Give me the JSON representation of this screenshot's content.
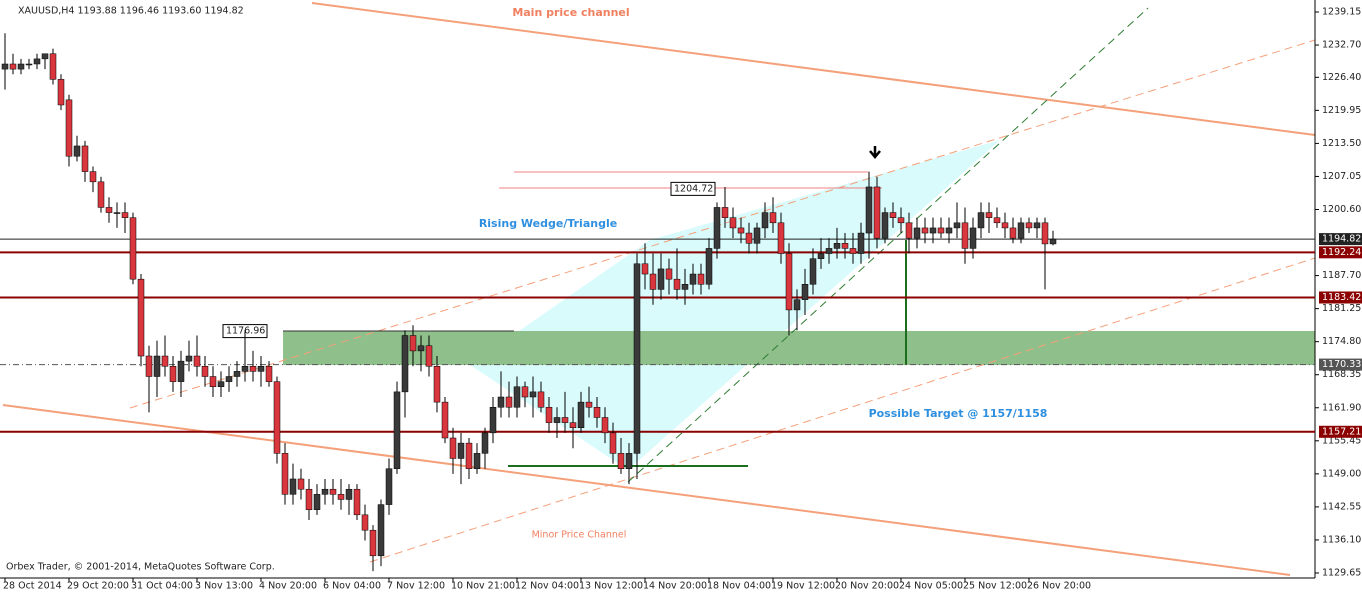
{
  "chart_data": {
    "type": "candlestick",
    "title": "XAUUSD,H4  1193.88 1196.46 1193.60 1194.82",
    "footer": "Orbex Trader, © 2001-2014, MetaQuotes Software Corp.",
    "annotations": [
      "Main price channel",
      "Rising Wedge/Triangle",
      "Possible Target @ 1157/1158",
      "Minor Price Channel"
    ],
    "price_labels": [
      1176.96,
      1204.72
    ],
    "up_color": "#3a3a3a",
    "down_color": "#d9363e",
    "ylim": [
      1128.67,
      1241.1
    ],
    "yticks": [
      {
        "value": 1239.15,
        "label": "1239.15"
      },
      {
        "value": 1232.7,
        "label": "1232.70"
      },
      {
        "value": 1226.4,
        "label": "1226.40"
      },
      {
        "value": 1219.95,
        "label": "1219.95"
      },
      {
        "value": 1213.5,
        "label": "1213.50"
      },
      {
        "value": 1207.05,
        "label": "1207.05"
      },
      {
        "value": 1200.6,
        "label": "1200.60"
      },
      {
        "value": 1187.7,
        "label": "1187.70"
      },
      1181.25,
      {
        "value": 1174.8,
        "label": "1174.80"
      },
      1168.35,
      {
        "value": 1161.9,
        "label": "1161.90"
      },
      1155.45,
      {
        "value": 1149,
        "label": "1149.00"
      },
      1142.55,
      {
        "value": 1136.1,
        "label": "1136.10"
      },
      1129.65
    ],
    "levels": [
      {
        "value": 1194.82,
        "color": "#222222",
        "dashed": false
      },
      {
        "value": 1192.24,
        "color": "#8b0000",
        "dashed": false
      },
      {
        "value": 1183.42,
        "color": "#8b0000",
        "dashed": false
      },
      {
        "value": 1170.33,
        "color": "#555555",
        "dashed": true
      },
      {
        "value": 1157.21,
        "color": "#8b0000",
        "dashed": false
      }
    ],
    "categories": [
      "28 Oct 2014",
      null,
      null,
      null,
      null,
      null,
      null,
      null,
      "29 Oct 20:00",
      null,
      null,
      null,
      null,
      null,
      null,
      null,
      "31 Oct 04:00",
      null,
      null,
      null,
      null,
      null,
      null,
      null,
      "3 Nov 13:00",
      null,
      null,
      null,
      null,
      null,
      null,
      null,
      "4 Nov 20:00",
      null,
      null,
      null,
      null,
      null,
      null,
      null,
      "6 Nov 04:00",
      null,
      null,
      null,
      null,
      null,
      null,
      null,
      "7 Nov 12:00",
      null,
      null,
      null,
      null,
      null,
      null,
      null,
      "10 Nov 21:00",
      null,
      null,
      null,
      null,
      null,
      null,
      null,
      "12 Nov 04:00",
      null,
      null,
      null,
      null,
      null,
      null,
      null,
      "13 Nov 12:00",
      null,
      null,
      null,
      null,
      null,
      null,
      null,
      "14 Nov 20:00",
      null,
      null,
      null,
      null,
      null,
      null,
      null,
      "18 Nov 04:00",
      null,
      null,
      null,
      null,
      null,
      null,
      null,
      "19 Nov 12:00",
      null,
      null,
      null,
      null,
      null,
      null,
      null,
      "20 Nov 20:00",
      null,
      null,
      null,
      null,
      null,
      null,
      null,
      "24 Nov 05:00",
      null,
      null,
      null,
      null,
      null,
      null,
      null,
      "25 Nov 12:00",
      null,
      null,
      null,
      null,
      null,
      null,
      null,
      "26 Nov 20:00",
      null,
      null,
      null
    ],
    "open": [
      1228,
      1229,
      1228,
      1229,
      1229,
      1230,
      1231,
      1226,
      1222,
      1211,
      1213,
      1208,
      1206,
      1201,
      1200,
      1200,
      1199,
      1187,
      1172,
      1168,
      1172,
      1170,
      1167,
      1171,
      1172,
      1170,
      1168,
      1166,
      1167,
      1168,
      1169,
      1170,
      1169,
      1170,
      1167,
      1153,
      1145,
      1148,
      1146,
      1142,
      1145,
      1146,
      1145,
      1144,
      1146,
      1141,
      1138,
      1133,
      1143,
      1150,
      1165,
      1176,
      1173,
      1174,
      1170,
      1163,
      1156,
      1152,
      1155,
      1150,
      1153,
      1157,
      1162,
      1164,
      1162,
      1166,
      1164,
      1165,
      1162,
      1159,
      1160,
      1159,
      1158,
      1163,
      1162,
      1160,
      1157,
      1153,
      1150,
      1153,
      1190,
      1188,
      1185,
      1189,
      1187,
      1185,
      1186,
      1188,
      1186,
      1193,
      1201,
      1199,
      1197,
      1196,
      1194,
      1197,
      1200,
      1198,
      1192,
      1181,
      1183,
      1186,
      1191,
      1192,
      1193,
      1194,
      1193,
      1192,
      1196,
      1205,
      1195,
      1200,
      1199,
      1198,
      1195,
      1197,
      1196,
      1197,
      1196,
      1197,
      1198,
      1193,
      1197,
      1200,
      1199,
      1198,
      1197,
      1195,
      1198,
      1197,
      1198,
      1193.88
    ],
    "high": [
      1235,
      1231,
      1230,
      1230,
      1231,
      1231,
      1232,
      1227,
      1223,
      1215,
      1214,
      1209,
      1207,
      1203,
      1202,
      1202,
      1200,
      1188,
      1174,
      1175,
      1176,
      1172,
      1173,
      1175,
      1176,
      1172,
      1170,
      1169,
      1170,
      1171,
      1177,
      1173,
      1172,
      1171,
      1168,
      1155,
      1151,
      1150,
      1148,
      1147,
      1148,
      1148,
      1148,
      1147,
      1147,
      1143,
      1139,
      1144,
      1152,
      1167,
      1177,
      1178,
      1176,
      1176,
      1172,
      1164,
      1158,
      1157,
      1156,
      1155,
      1158,
      1164,
      1169,
      1167,
      1168,
      1167,
      1168,
      1167,
      1164,
      1162,
      1165,
      1162,
      1165,
      1166,
      1164,
      1162,
      1159,
      1156,
      1155,
      1192,
      1194,
      1192,
      1192,
      1191,
      1193,
      1189,
      1190,
      1190,
      1195,
      1202,
      1205,
      1201,
      1199,
      1198,
      1198,
      1202,
      1203,
      1200,
      1194,
      1185,
      1189,
      1193,
      1195,
      1195,
      1197,
      1196,
      1196,
      1198,
      1208,
      1207,
      1201,
      1202,
      1201,
      1200,
      1199,
      1199,
      1199,
      1199,
      1199,
      1202,
      1201,
      1199,
      1202,
      1202,
      1201,
      1200,
      1199,
      1199,
      1199,
      1199,
      1199,
      1196.46
    ],
    "low": [
      1224,
      1227,
      1227,
      1228,
      1228,
      1228,
      1225,
      1220,
      1209,
      1210,
      1206,
      1204,
      1200,
      1198,
      1197,
      1196,
      1186,
      1170,
      1161,
      1164,
      1168,
      1165,
      1164,
      1169,
      1168,
      1166,
      1164,
      1164,
      1165,
      1166,
      1167,
      1167,
      1166,
      1166,
      1151,
      1143,
      1143,
      1144,
      1140,
      1141,
      1143,
      1143,
      1142,
      1141,
      1140,
      1136,
      1130,
      1131,
      1141,
      1149,
      1160,
      1170,
      1169,
      1168,
      1161,
      1155,
      1149,
      1147,
      1148,
      1149,
      1150,
      1155,
      1160,
      1160,
      1160,
      1162,
      1160,
      1161,
      1157,
      1156,
      1157,
      1154,
      1157,
      1160,
      1158,
      1155,
      1151,
      1149,
      1147,
      1148,
      1185,
      1182,
      1183,
      1184,
      1183,
      1182,
      1184,
      1184,
      1185,
      1191,
      1197,
      1195,
      1194,
      1192,
      1192,
      1195,
      1196,
      1190,
      1176,
      1177,
      1180,
      1184,
      1189,
      1190,
      1191,
      1191,
      1190,
      1190,
      1191,
      1193,
      1194,
      1197,
      1196,
      1192,
      1193,
      1194,
      1194,
      1195,
      1194,
      1195,
      1190,
      1191,
      1195,
      1196,
      1197,
      1195,
      1194,
      1194,
      1196,
      1195,
      1185,
      1193.6
    ],
    "close": [
      1229,
      1228,
      1229,
      1229,
      1230,
      1231,
      1226,
      1221,
      1211,
      1213,
      1208,
      1206,
      1201,
      1200,
      1200,
      1199,
      1187,
      1172,
      1168,
      1172,
      1170,
      1167,
      1171,
      1172,
      1170,
      1168,
      1166,
      1167,
      1168,
      1169,
      1170,
      1169,
      1170,
      1167,
      1153,
      1145,
      1148,
      1146,
      1142,
      1145,
      1146,
      1145,
      1144,
      1146,
      1141,
      1138,
      1133,
      1143,
      1150,
      1165,
      1176,
      1173,
      1174,
      1170,
      1163,
      1156,
      1152,
      1155,
      1150,
      1153,
      1157,
      1162,
      1164,
      1162,
      1166,
      1164,
      1165,
      1162,
      1159,
      1160,
      1159,
      1158,
      1163,
      1162,
      1160,
      1157,
      1153,
      1150,
      1153,
      1190,
      1188,
      1185,
      1189,
      1187,
      1185,
      1186,
      1188,
      1186,
      1193,
      1201,
      1199,
      1197,
      1196,
      1194,
      1197,
      1200,
      1198,
      1192,
      1181,
      1183,
      1186,
      1191,
      1192,
      1193,
      1194,
      1193,
      1192,
      1196,
      1205,
      1195,
      1200,
      1199,
      1198,
      1195,
      1197,
      1196,
      1197,
      1196,
      1197,
      1198,
      1193,
      1197,
      1200,
      1199,
      1198,
      1197,
      1195,
      1198,
      1197,
      1198,
      1193.88,
      1194.82
    ]
  }
}
